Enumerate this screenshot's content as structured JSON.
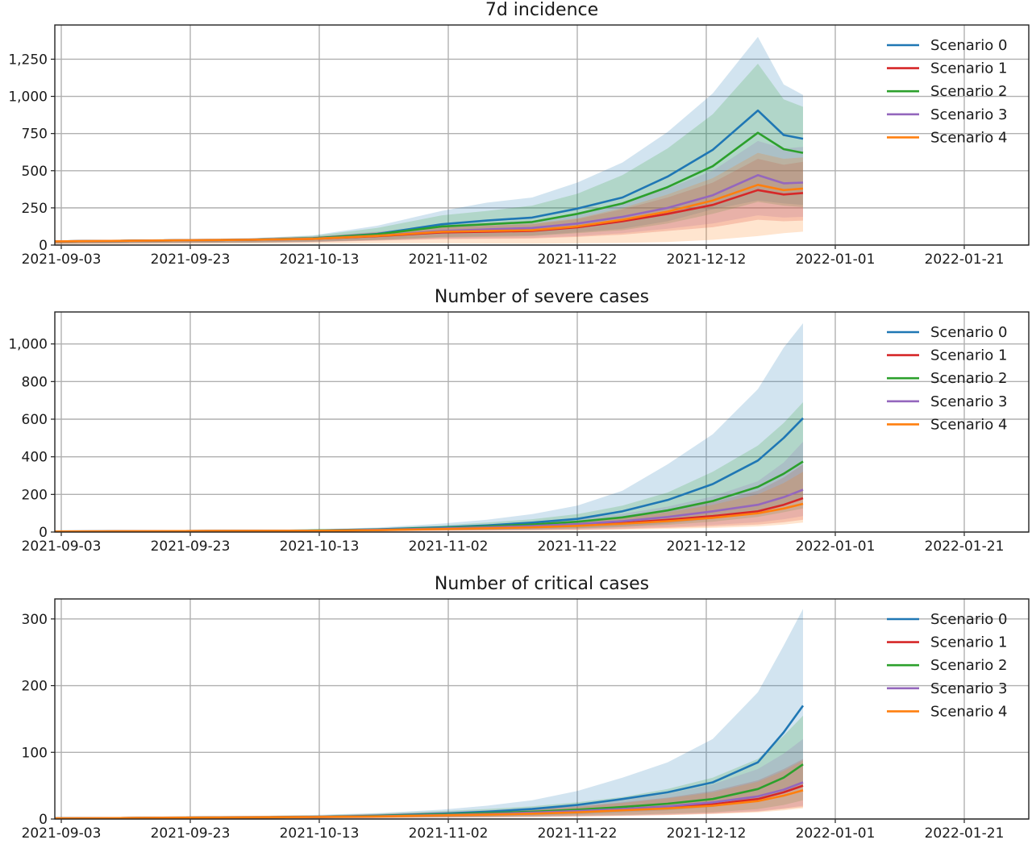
{
  "chart_data": [
    {
      "type": "line",
      "title": "7d incidence",
      "xlabel": "",
      "ylabel": "",
      "x_ticks": [
        "2021-09-03",
        "2021-09-23",
        "2021-10-13",
        "2021-11-02",
        "2021-11-22",
        "2021-12-12",
        "2022-01-01",
        "2022-01-21"
      ],
      "xlim": [
        "2021-09-02",
        "2022-01-31"
      ],
      "ylim": [
        0,
        1480
      ],
      "y_ticks": [
        0,
        250,
        500,
        750,
        1000,
        1250
      ],
      "y_tick_labels": [
        "0",
        "250",
        "500",
        "750",
        "1,000",
        "1,250"
      ],
      "grid": true,
      "legend": "top-right",
      "x": [
        "2021-09-02",
        "2021-09-12",
        "2021-09-22",
        "2021-10-02",
        "2021-10-12",
        "2021-10-22",
        "2021-11-01",
        "2021-11-08",
        "2021-11-15",
        "2021-11-22",
        "2021-11-29",
        "2021-12-06",
        "2021-12-13",
        "2021-12-20",
        "2021-12-24",
        "2021-12-27"
      ],
      "series": [
        {
          "name": "Scenario 0",
          "color": "#1f77b4",
          "values": [
            25,
            28,
            32,
            35,
            45,
            75,
            140,
            165,
            185,
            245,
            320,
            460,
            640,
            905,
            740,
            715
          ],
          "lower": [
            10,
            12,
            14,
            16,
            22,
            35,
            55,
            60,
            65,
            85,
            110,
            160,
            240,
            300,
            280,
            270
          ],
          "upper": [
            32,
            36,
            40,
            45,
            65,
            130,
            230,
            285,
            320,
            420,
            555,
            760,
            1020,
            1400,
            1080,
            1010
          ]
        },
        {
          "name": "Scenario 1",
          "color": "#d62728",
          "values": [
            25,
            28,
            32,
            35,
            42,
            60,
            85,
            90,
            95,
            120,
            160,
            210,
            270,
            370,
            340,
            350
          ],
          "lower": [
            10,
            12,
            14,
            16,
            20,
            30,
            40,
            42,
            44,
            55,
            70,
            95,
            120,
            170,
            160,
            165
          ],
          "upper": [
            32,
            36,
            40,
            45,
            55,
            85,
            120,
            130,
            140,
            175,
            240,
            320,
            420,
            580,
            540,
            560
          ]
        },
        {
          "name": "Scenario 2",
          "color": "#2ca02c",
          "values": [
            25,
            28,
            32,
            35,
            45,
            72,
            125,
            140,
            155,
            210,
            280,
            390,
            530,
            755,
            645,
            620
          ],
          "lower": [
            10,
            12,
            14,
            16,
            22,
            34,
            50,
            55,
            60,
            80,
            100,
            145,
            210,
            290,
            265,
            255
          ],
          "upper": [
            32,
            36,
            40,
            45,
            62,
            115,
            200,
            230,
            265,
            345,
            470,
            650,
            880,
            1220,
            980,
            930
          ]
        },
        {
          "name": "Scenario 3",
          "color": "#9467bd",
          "values": [
            25,
            28,
            32,
            35,
            43,
            63,
            95,
            105,
            115,
            145,
            190,
            250,
            335,
            470,
            415,
            420
          ],
          "lower": [
            10,
            12,
            14,
            16,
            20,
            31,
            42,
            45,
            48,
            60,
            80,
            110,
            145,
            200,
            185,
            190
          ],
          "upper": [
            32,
            36,
            40,
            45,
            57,
            90,
            135,
            150,
            165,
            210,
            285,
            380,
            500,
            700,
            650,
            660
          ]
        },
        {
          "name": "Scenario 4",
          "color": "#ff7f0e",
          "values": [
            25,
            28,
            32,
            35,
            42,
            62,
            90,
            95,
            100,
            125,
            170,
            225,
            300,
            405,
            370,
            380
          ],
          "lower": [
            5,
            6,
            8,
            9,
            10,
            12,
            12,
            11,
            10,
            12,
            14,
            20,
            35,
            60,
            80,
            90
          ],
          "upper": [
            32,
            36,
            40,
            45,
            55,
            85,
            125,
            135,
            145,
            180,
            250,
            340,
            450,
            620,
            580,
            590
          ]
        }
      ]
    },
    {
      "type": "line",
      "title": "Number of severe cases",
      "xlabel": "",
      "ylabel": "",
      "x_ticks": [
        "2021-09-03",
        "2021-09-23",
        "2021-10-13",
        "2021-11-02",
        "2021-11-22",
        "2021-12-12",
        "2022-01-01",
        "2022-01-21"
      ],
      "xlim": [
        "2021-09-02",
        "2022-01-31"
      ],
      "ylim": [
        0,
        1170
      ],
      "y_ticks": [
        0,
        200,
        400,
        600,
        800,
        1000
      ],
      "y_tick_labels": [
        "0",
        "200",
        "400",
        "600",
        "800",
        "1,000"
      ],
      "grid": true,
      "legend": "top-right",
      "x": [
        "2021-09-02",
        "2021-09-12",
        "2021-09-22",
        "2021-10-02",
        "2021-10-12",
        "2021-10-22",
        "2021-11-01",
        "2021-11-08",
        "2021-11-15",
        "2021-11-22",
        "2021-11-29",
        "2021-12-06",
        "2021-12-13",
        "2021-12-20",
        "2021-12-24",
        "2021-12-27"
      ],
      "series": [
        {
          "name": "Scenario 0",
          "color": "#1f77b4",
          "values": [
            3,
            4,
            5,
            6,
            8,
            14,
            25,
            35,
            50,
            70,
            110,
            170,
            255,
            380,
            500,
            605
          ],
          "lower": [
            1,
            2,
            2,
            3,
            4,
            6,
            10,
            12,
            15,
            20,
            30,
            45,
            70,
            110,
            150,
            180
          ],
          "upper": [
            5,
            6,
            8,
            10,
            14,
            24,
            45,
            65,
            95,
            140,
            220,
            360,
            520,
            760,
            980,
            1110
          ]
        },
        {
          "name": "Scenario 1",
          "color": "#d62728",
          "values": [
            3,
            4,
            5,
            6,
            7,
            11,
            17,
            22,
            28,
            36,
            48,
            65,
            85,
            110,
            145,
            180
          ],
          "lower": [
            1,
            2,
            2,
            3,
            3,
            5,
            7,
            8,
            10,
            12,
            16,
            22,
            30,
            40,
            52,
            65
          ],
          "upper": [
            5,
            6,
            8,
            10,
            12,
            18,
            28,
            36,
            46,
            60,
            82,
            115,
            160,
            220,
            290,
            360
          ]
        },
        {
          "name": "Scenario 2",
          "color": "#2ca02c",
          "values": [
            3,
            4,
            5,
            6,
            8,
            13,
            22,
            30,
            40,
            55,
            78,
            115,
            165,
            240,
            310,
            375
          ],
          "lower": [
            1,
            2,
            2,
            3,
            4,
            6,
            9,
            11,
            14,
            18,
            26,
            38,
            55,
            80,
            105,
            125
          ],
          "upper": [
            5,
            6,
            8,
            10,
            13,
            21,
            36,
            50,
            68,
            95,
            140,
            210,
            320,
            460,
            580,
            690
          ]
        },
        {
          "name": "Scenario 3",
          "color": "#9467bd",
          "values": [
            3,
            4,
            5,
            6,
            7,
            12,
            19,
            25,
            32,
            42,
            58,
            80,
            110,
            145,
            185,
            225
          ],
          "lower": [
            1,
            2,
            2,
            3,
            3,
            5,
            8,
            9,
            11,
            14,
            19,
            27,
            38,
            52,
            68,
            85
          ],
          "upper": [
            5,
            6,
            8,
            10,
            12,
            19,
            31,
            41,
            53,
            70,
            97,
            135,
            190,
            270,
            370,
            480
          ]
        },
        {
          "name": "Scenario 4",
          "color": "#ff7f0e",
          "values": [
            3,
            4,
            5,
            6,
            7,
            10,
            16,
            20,
            25,
            33,
            44,
            58,
            76,
            100,
            125,
            150
          ],
          "lower": [
            1,
            2,
            2,
            3,
            3,
            4,
            6,
            7,
            8,
            10,
            13,
            17,
            22,
            30,
            40,
            50
          ],
          "upper": [
            5,
            6,
            8,
            10,
            11,
            17,
            26,
            33,
            42,
            56,
            76,
            105,
            145,
            200,
            260,
            320
          ]
        }
      ]
    },
    {
      "type": "line",
      "title": "Number of critical cases",
      "xlabel": "",
      "ylabel": "",
      "x_ticks": [
        "2021-09-03",
        "2021-09-23",
        "2021-10-13",
        "2021-11-02",
        "2021-11-22",
        "2021-12-12",
        "2022-01-01",
        "2022-01-21"
      ],
      "xlim": [
        "2021-09-02",
        "2022-01-31"
      ],
      "ylim": [
        0,
        330
      ],
      "y_ticks": [
        0,
        100,
        200,
        300
      ],
      "y_tick_labels": [
        "0",
        "100",
        "200",
        "300"
      ],
      "grid": true,
      "legend": "top-right",
      "x": [
        "2021-09-02",
        "2021-09-12",
        "2021-09-22",
        "2021-10-02",
        "2021-10-12",
        "2021-10-22",
        "2021-11-01",
        "2021-11-08",
        "2021-11-15",
        "2021-11-22",
        "2021-11-29",
        "2021-12-06",
        "2021-12-13",
        "2021-12-20",
        "2021-12-24",
        "2021-12-27"
      ],
      "series": [
        {
          "name": "Scenario 0",
          "color": "#1f77b4",
          "values": [
            1,
            1.5,
            2,
            2.5,
            3,
            5,
            8,
            11,
            15,
            21,
            30,
            40,
            55,
            85,
            130,
            170
          ],
          "lower": [
            0.3,
            0.5,
            0.7,
            0.9,
            1,
            2,
            3,
            4,
            5,
            7,
            10,
            13,
            18,
            28,
            40,
            50
          ],
          "upper": [
            2,
            3,
            4,
            4.5,
            6,
            9,
            14,
            20,
            28,
            42,
            62,
            85,
            120,
            190,
            260,
            315
          ]
        },
        {
          "name": "Scenario 1",
          "color": "#d62728",
          "values": [
            1,
            1.5,
            2,
            2.5,
            3,
            4,
            6,
            7,
            9,
            11,
            14,
            17,
            22,
            30,
            40,
            50
          ],
          "lower": [
            0.3,
            0.5,
            0.7,
            0.9,
            1,
            1.5,
            2,
            2.5,
            3,
            4,
            5,
            6,
            8,
            11,
            15,
            18
          ],
          "upper": [
            2,
            3,
            4,
            4.5,
            5,
            7,
            10,
            12,
            15,
            19,
            25,
            32,
            42,
            58,
            75,
            90
          ]
        },
        {
          "name": "Scenario 2",
          "color": "#2ca02c",
          "values": [
            1,
            1.5,
            2,
            2.5,
            3,
            4.5,
            7,
            9,
            11,
            14,
            18,
            23,
            30,
            45,
            62,
            82
          ],
          "lower": [
            0.3,
            0.5,
            0.7,
            0.9,
            1,
            1.8,
            2.5,
            3,
            4,
            5,
            6,
            8,
            10,
            15,
            21,
            28
          ],
          "upper": [
            2,
            3,
            4,
            4.5,
            5.5,
            8,
            12,
            15,
            19,
            25,
            33,
            45,
            62,
            90,
            125,
            155
          ]
        },
        {
          "name": "Scenario 3",
          "color": "#9467bd",
          "values": [
            1,
            1.5,
            2,
            2.5,
            3,
            4,
            6,
            7.5,
            9.5,
            12,
            15,
            19,
            25,
            34,
            44,
            55
          ],
          "lower": [
            0.3,
            0.5,
            0.7,
            0.9,
            1,
            1.6,
            2.2,
            2.8,
            3.4,
            4.5,
            5.5,
            7,
            9,
            12,
            16,
            20
          ],
          "upper": [
            2,
            3,
            4,
            4.5,
            5.2,
            7.5,
            11,
            13,
            17,
            22,
            29,
            38,
            52,
            75,
            98,
            120
          ]
        },
        {
          "name": "Scenario 4",
          "color": "#ff7f0e",
          "values": [
            1,
            1.5,
            2,
            2.5,
            3,
            3.8,
            5.5,
            6.5,
            8,
            10,
            13,
            16,
            20,
            27,
            35,
            43
          ],
          "lower": [
            0.3,
            0.5,
            0.7,
            0.9,
            1,
            1.4,
            2,
            2.4,
            3,
            3.8,
            4.6,
            5.8,
            7.5,
            10,
            13,
            16
          ],
          "upper": [
            2,
            3,
            4,
            4.5,
            5,
            7,
            9.5,
            11.5,
            14,
            18,
            24,
            31,
            40,
            56,
            72,
            88
          ]
        }
      ]
    }
  ]
}
